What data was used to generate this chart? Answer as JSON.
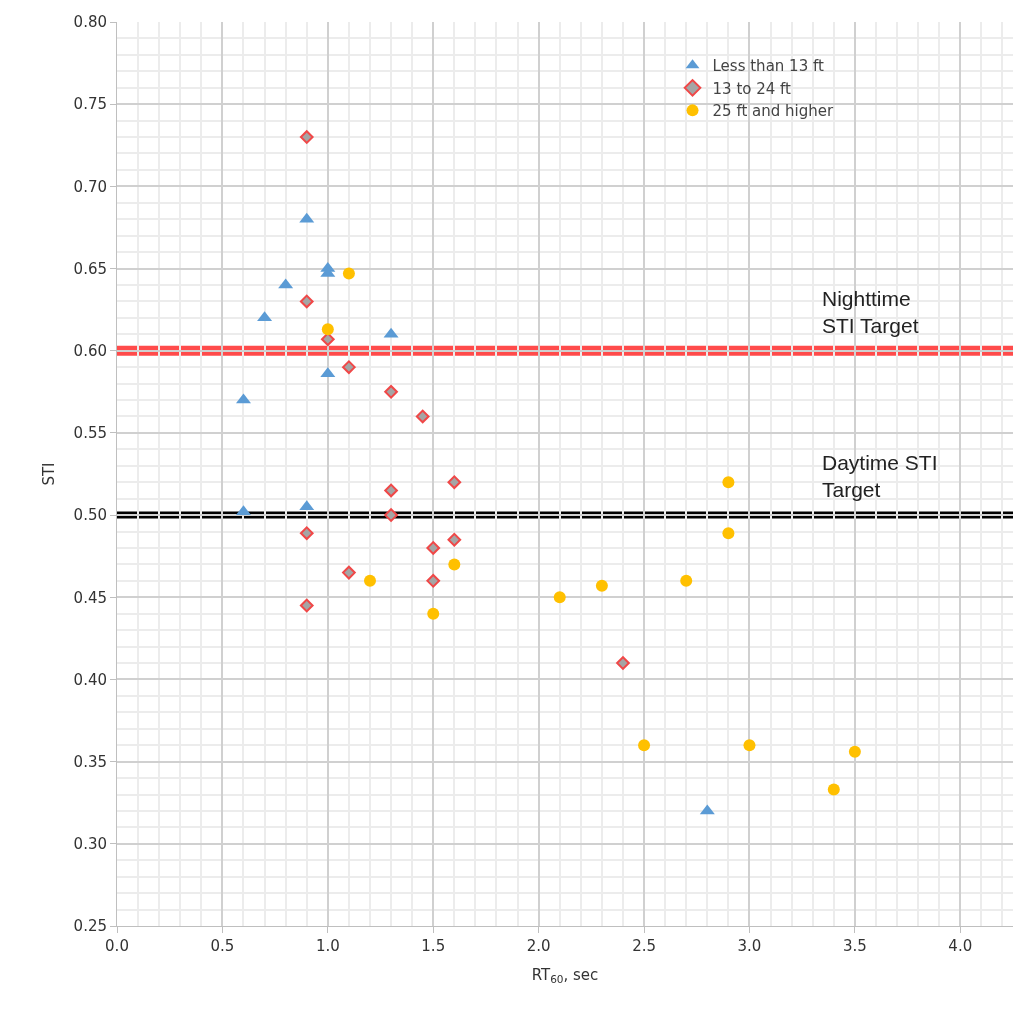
{
  "chart_data": {
    "type": "scatter",
    "xlabel": "RT$_{60}$, sec",
    "ylabel": "STI",
    "xlim": [
      0,
      4.25
    ],
    "ylim": [
      0.25,
      0.8
    ],
    "xticks": [
      {
        "value": 0,
        "label": "0.0"
      },
      {
        "value": 0.5,
        "label": "0.5"
      },
      {
        "value": 1,
        "label": "1.0"
      },
      {
        "value": 1.5,
        "label": "1.5"
      },
      {
        "value": 2,
        "label": "2.0"
      },
      {
        "value": 2.5,
        "label": "2.5"
      },
      {
        "value": 3,
        "label": "3.0"
      },
      {
        "value": 3.5,
        "label": "3.5"
      },
      {
        "value": 4,
        "label": "4.0"
      }
    ],
    "yticks": [
      {
        "value": 0.25,
        "label": "0.25"
      },
      {
        "value": 0.3,
        "label": "0.30"
      },
      {
        "value": 0.35,
        "label": "0.35"
      },
      {
        "value": 0.4,
        "label": "0.40"
      },
      {
        "value": 0.45,
        "label": "0.45"
      },
      {
        "value": 0.5,
        "label": "0.50"
      },
      {
        "value": 0.55,
        "label": "0.55"
      },
      {
        "value": 0.6,
        "label": "0.60"
      },
      {
        "value": 0.65,
        "label": "0.65"
      },
      {
        "value": 0.7,
        "label": "0.70"
      },
      {
        "value": 0.75,
        "label": "0.75"
      },
      {
        "value": 0.8,
        "label": "0.80"
      }
    ],
    "grid": true,
    "legend": "top right",
    "series": [
      {
        "name": "Less than 13 ft",
        "color": "#5b9bd5",
        "marker": "triangle",
        "x": [
          0.9,
          1.0,
          1.0,
          0.8,
          0.7,
          1.3,
          1.0,
          0.6,
          0.6,
          0.9,
          2.8
        ],
        "values": [
          0.68,
          0.65,
          0.647,
          0.64,
          0.62,
          0.61,
          0.586,
          0.57,
          0.502,
          0.505,
          0.32
        ]
      },
      {
        "name": "13 to 24 ft",
        "color": "#f04848",
        "marker": "diamond",
        "x": [
          0.9,
          0.9,
          1.0,
          1.1,
          1.3,
          1.45,
          1.3,
          1.6,
          1.3,
          0.9,
          1.5,
          1.6,
          1.1,
          1.5,
          0.9,
          2.4
        ],
        "values": [
          0.73,
          0.63,
          0.607,
          0.59,
          0.575,
          0.56,
          0.515,
          0.52,
          0.5,
          0.489,
          0.48,
          0.485,
          0.465,
          0.46,
          0.445,
          0.41
        ]
      },
      {
        "name": "25 ft and higher",
        "color": "#ffc000",
        "marker": "circle",
        "x": [
          1.1,
          1.0,
          1.2,
          1.6,
          1.5,
          2.1,
          2.3,
          2.7,
          2.9,
          2.9,
          2.5,
          3.0,
          3.5,
          3.4
        ],
        "values": [
          0.647,
          0.613,
          0.46,
          0.47,
          0.44,
          0.45,
          0.457,
          0.46,
          0.52,
          0.489,
          0.36,
          0.36,
          0.356,
          0.333
        ]
      }
    ],
    "ref_lines": [
      {
        "axis": "y",
        "value": 0.6,
        "label": "Nighttime\nSTI Target",
        "color": "#ff4b4b"
      },
      {
        "axis": "y",
        "value": 0.5,
        "label": "Daytime STI\nTarget",
        "color": "#000000"
      }
    ]
  }
}
